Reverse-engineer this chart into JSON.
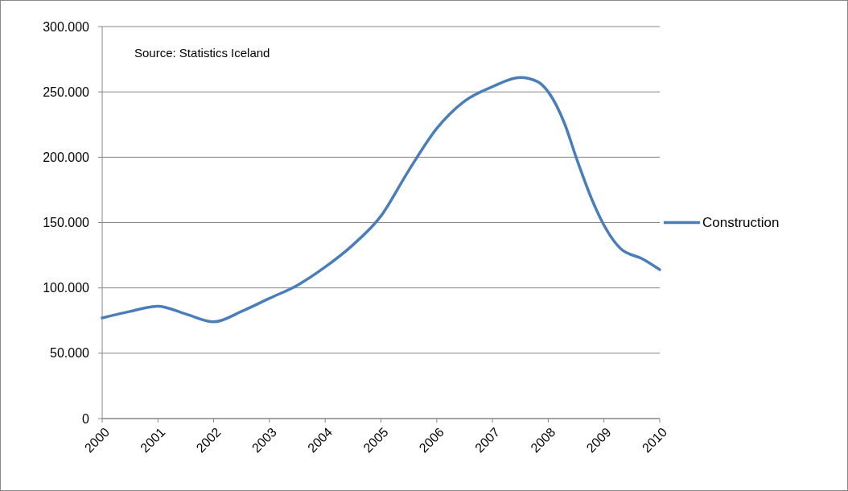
{
  "chart_data": {
    "type": "line",
    "annotations": [
      "Source: Statistics Iceland"
    ],
    "x": [
      2000,
      2000.5,
      2001,
      2001.5,
      2002,
      2002.5,
      2003,
      2003.5,
      2004,
      2004.5,
      2005,
      2005.5,
      2006,
      2006.5,
      2007,
      2007.5,
      2007.8,
      2008,
      2008.3,
      2008.5,
      2008.8,
      2009,
      2009.3,
      2009.7,
      2010
    ],
    "series": [
      {
        "name": "Construction",
        "color": "#4a7ebb",
        "values": [
          77000,
          82000,
          86000,
          80000,
          74000,
          82000,
          92000,
          102000,
          116000,
          133000,
          155000,
          190000,
          222000,
          243000,
          254000,
          261000,
          258000,
          250000,
          225000,
          200000,
          166000,
          148000,
          130000,
          122000,
          114000
        ]
      }
    ],
    "xlim": [
      2000,
      2010
    ],
    "xticks": [
      2000,
      2001,
      2002,
      2003,
      2004,
      2005,
      2006,
      2007,
      2008,
      2009,
      2010
    ],
    "ylim": [
      0,
      300000
    ],
    "yticks": [
      0,
      {
        "value": 50000,
        "label": "50.000"
      },
      {
        "value": 100000,
        "label": "100.000"
      },
      {
        "value": 150000,
        "label": "150.000"
      },
      {
        "value": 200000,
        "label": "200.000"
      },
      {
        "value": 250000,
        "label": "250.000"
      },
      {
        "value": 300000,
        "label": "300.000"
      }
    ],
    "grid": "y",
    "legend": "right",
    "marker": "none",
    "line_style": "solid"
  }
}
